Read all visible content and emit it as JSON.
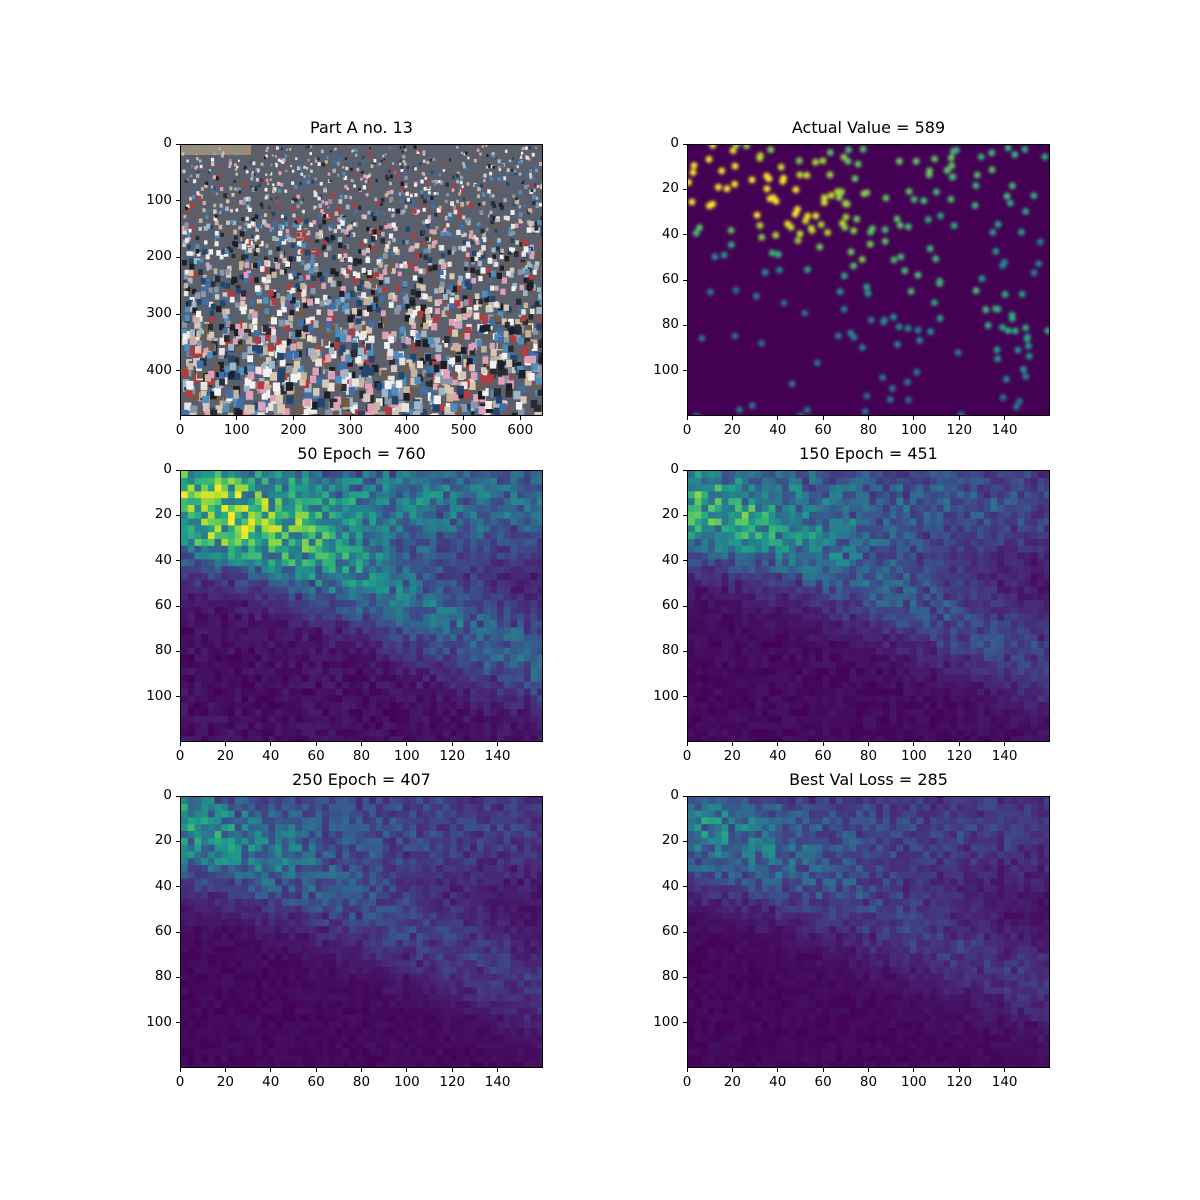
{
  "chart_data": [
    {
      "type": "heatmap",
      "title": "Part A no. 13",
      "image_kind": "photo-crowd",
      "xlim": [
        0,
        640
      ],
      "ylim": [
        480,
        0
      ],
      "x_ticks": [
        "0",
        "100",
        "200",
        "300",
        "400",
        "500",
        "600"
      ],
      "y_ticks": [
        "0",
        "100",
        "200",
        "300",
        "400"
      ]
    },
    {
      "type": "heatmap",
      "title": "Actual Value = 589",
      "count": 589,
      "image_kind": "density-points",
      "colormap": "viridis",
      "xlim": [
        0,
        160
      ],
      "ylim": [
        120,
        0
      ],
      "x_ticks": [
        "0",
        "20",
        "40",
        "60",
        "80",
        "100",
        "120",
        "140"
      ],
      "y_ticks": [
        "0",
        "20",
        "40",
        "60",
        "80",
        "100"
      ]
    },
    {
      "type": "heatmap",
      "title": "50 Epoch = 760",
      "count": 760,
      "image_kind": "density-prediction",
      "intensity": 1.0,
      "colormap": "viridis",
      "xlim": [
        0,
        160
      ],
      "ylim": [
        120,
        0
      ],
      "x_ticks": [
        "0",
        "20",
        "40",
        "60",
        "80",
        "100",
        "120",
        "140"
      ],
      "y_ticks": [
        "0",
        "20",
        "40",
        "60",
        "80",
        "100"
      ]
    },
    {
      "type": "heatmap",
      "title": "150 Epoch = 451",
      "count": 451,
      "image_kind": "density-prediction",
      "intensity": 0.7,
      "colormap": "viridis",
      "xlim": [
        0,
        160
      ],
      "ylim": [
        120,
        0
      ],
      "x_ticks": [
        "0",
        "20",
        "40",
        "60",
        "80",
        "100",
        "120",
        "140"
      ],
      "y_ticks": [
        "0",
        "20",
        "40",
        "60",
        "80",
        "100"
      ]
    },
    {
      "type": "heatmap",
      "title": "250 Epoch = 407",
      "count": 407,
      "image_kind": "density-prediction",
      "intensity": 0.55,
      "colormap": "viridis",
      "xlim": [
        0,
        160
      ],
      "ylim": [
        120,
        0
      ],
      "x_ticks": [
        "0",
        "20",
        "40",
        "60",
        "80",
        "100",
        "120",
        "140"
      ],
      "y_ticks": [
        "0",
        "20",
        "40",
        "60",
        "80",
        "100"
      ]
    },
    {
      "type": "heatmap",
      "title": "Best Val Loss = 285",
      "count": 285,
      "image_kind": "density-prediction",
      "intensity": 0.5,
      "colormap": "viridis",
      "xlim": [
        0,
        160
      ],
      "ylim": [
        120,
        0
      ],
      "x_ticks": [
        "0",
        "20",
        "40",
        "60",
        "80",
        "100",
        "120",
        "140"
      ],
      "y_ticks": [
        "0",
        "20",
        "40",
        "60",
        "80",
        "100"
      ]
    }
  ]
}
